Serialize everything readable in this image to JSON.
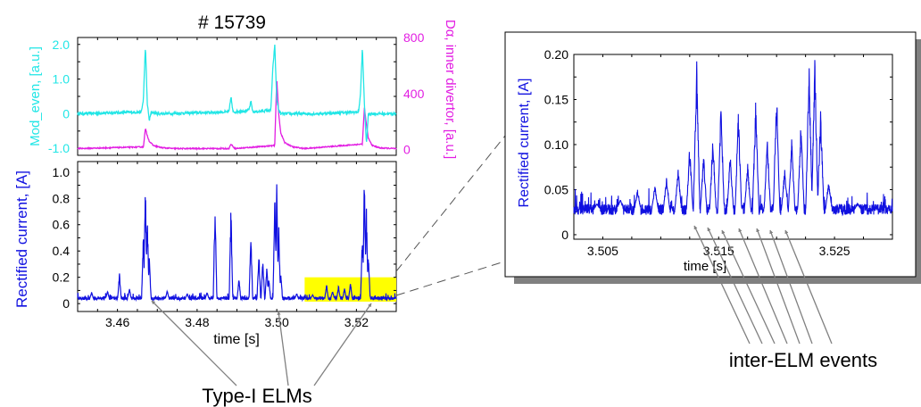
{
  "title": "# 15739",
  "annotations": {
    "type1_elms": "Type-I ELMs",
    "inter_elm": "inter-ELM events"
  },
  "colors": {
    "mod_even": "#22e6e6",
    "dalpha": "#e21ee2",
    "rectified": "#1010e0",
    "highlight": "#ffff00",
    "arrow": "#808080"
  },
  "chart_data": [
    {
      "type": "line",
      "title": "# 15739",
      "xlim": [
        3.45,
        3.53
      ],
      "ylabel_left": "Mod_even, [a.u.]",
      "ylabel_right": "Dα, inner divertor, [a.u.]",
      "ylim_left": [
        -1.2,
        2.2
      ],
      "ylim_right": [
        -40,
        800
      ],
      "left_ticks": [
        "2.0",
        "1.0",
        "0",
        "-1.0"
      ],
      "left_tick_values": [
        2.0,
        1.0,
        0,
        -1.0
      ],
      "right_ticks": [
        "800",
        "400",
        "0"
      ],
      "right_tick_values": [
        800,
        400,
        0
      ],
      "series": [
        {
          "name": "Mod_even",
          "axis": "left",
          "x": [
            3.45,
            3.466,
            3.4665,
            3.467,
            3.4675,
            3.468,
            3.4685,
            3.47,
            3.488,
            3.4885,
            3.489,
            3.493,
            3.4935,
            3.494,
            3.4985,
            3.499,
            3.4995,
            3.5,
            3.5005,
            3.501,
            3.51,
            3.5205,
            3.521,
            3.5215,
            3.522,
            3.5225,
            3.523,
            3.53
          ],
          "y": [
            0,
            0.05,
            0.4,
            1.95,
            0.3,
            -0.2,
            0.05,
            0,
            0.05,
            0.5,
            0.05,
            0.1,
            0.35,
            0.05,
            0.1,
            1.3,
            2.0,
            0.4,
            0.1,
            0,
            0,
            0.05,
            0.5,
            1.9,
            0.3,
            -0.9,
            0,
            0
          ]
        },
        {
          "name": "Dα, inner divertor",
          "axis": "right",
          "x": [
            3.45,
            3.4665,
            3.467,
            3.4675,
            3.468,
            3.469,
            3.471,
            3.474,
            3.488,
            3.4885,
            3.4895,
            3.4995,
            3.5,
            3.5005,
            3.501,
            3.502,
            3.504,
            3.507,
            3.5215,
            3.522,
            3.5225,
            3.523,
            3.524,
            3.526,
            3.53
          ],
          "y": [
            8,
            20,
            150,
            100,
            60,
            30,
            15,
            8,
            8,
            40,
            8,
            30,
            510,
            250,
            120,
            50,
            20,
            8,
            40,
            300,
            180,
            80,
            30,
            12,
            8
          ]
        }
      ]
    },
    {
      "type": "line",
      "xlabel": "time [s]",
      "ylabel": "Rectified current, [A]",
      "xlim": [
        3.45,
        3.53
      ],
      "ylim": [
        -0.06,
        1.08
      ],
      "x_ticks": [
        "3.46",
        "3.48",
        "3.50",
        "3.52"
      ],
      "x_tick_values": [
        3.46,
        3.48,
        3.5,
        3.52
      ],
      "y_ticks": [
        "1.0",
        "0.8",
        "0.6",
        "0.4",
        "0.2",
        "0"
      ],
      "y_tick_values": [
        1.0,
        0.8,
        0.6,
        0.4,
        0.2,
        0
      ],
      "highlight_region": {
        "x": [
          3.507,
          3.53
        ],
        "y": [
          0.015,
          0.2
        ]
      },
      "series": [
        {
          "name": "Rectified current",
          "baseline": 0.04,
          "spikes": [
            [
              3.4535,
              0.09
            ],
            [
              3.4575,
              0.1
            ],
            [
              3.4605,
              0.24
            ],
            [
              3.463,
              0.12
            ],
            [
              3.4665,
              0.55
            ],
            [
              3.467,
              0.98
            ],
            [
              3.4675,
              0.7
            ],
            [
              3.468,
              0.35
            ],
            [
              3.4725,
              0.1
            ],
            [
              3.4775,
              0.08
            ],
            [
              3.4825,
              0.09
            ],
            [
              3.4845,
              0.8
            ],
            [
              3.4885,
              0.77
            ],
            [
              3.4905,
              0.2
            ],
            [
              3.4935,
              0.55
            ],
            [
              3.4955,
              0.42
            ],
            [
              3.4965,
              0.35
            ],
            [
              3.4975,
              0.3
            ],
            [
              3.498,
              0.2
            ],
            [
              3.4995,
              0.9
            ],
            [
              3.5,
              0.98
            ],
            [
              3.5005,
              0.6
            ],
            [
              3.501,
              0.25
            ],
            [
              3.505,
              0.08
            ],
            [
              3.509,
              0.07
            ],
            [
              3.5125,
              0.15
            ],
            [
              3.514,
              0.1
            ],
            [
              3.5155,
              0.14
            ],
            [
              3.517,
              0.12
            ],
            [
              3.5185,
              0.17
            ],
            [
              3.5215,
              0.55
            ],
            [
              3.522,
              0.99
            ],
            [
              3.5225,
              0.75
            ],
            [
              3.523,
              0.4
            ]
          ]
        }
      ]
    },
    {
      "type": "line",
      "xlabel": "time [s]",
      "ylabel": "Rectified current, [A]",
      "xlim": [
        3.5025,
        3.53
      ],
      "ylim": [
        -0.005,
        0.2
      ],
      "x_ticks": [
        "3.505",
        "3.515",
        "3.525"
      ],
      "x_tick_values": [
        3.505,
        3.515,
        3.525
      ],
      "y_ticks": [
        "0.20",
        "0.15",
        "0.10",
        "0.05",
        "0"
      ],
      "y_tick_values": [
        0.2,
        0.15,
        0.1,
        0.05,
        0
      ],
      "series": [
        {
          "name": "Rectified current (zoom)",
          "baseline": 0.028,
          "spikes": [
            [
              3.5045,
              0.035
            ],
            [
              3.5065,
              0.04
            ],
            [
              3.508,
              0.05
            ],
            [
              3.5095,
              0.055
            ],
            [
              3.5105,
              0.065
            ],
            [
              3.5115,
              0.075
            ],
            [
              3.5125,
              0.1
            ],
            [
              3.5131,
              0.2
            ],
            [
              3.5137,
              0.09
            ],
            [
              3.5145,
              0.11
            ],
            [
              3.5152,
              0.145
            ],
            [
              3.516,
              0.09
            ],
            [
              3.5167,
              0.14
            ],
            [
              3.5175,
              0.08
            ],
            [
              3.5182,
              0.15
            ],
            [
              3.5192,
              0.105
            ],
            [
              3.52,
              0.165
            ],
            [
              3.5207,
              0.075
            ],
            [
              3.5213,
              0.11
            ],
            [
              3.5221,
              0.125
            ],
            [
              3.5228,
              0.2
            ],
            [
              3.5233,
              0.2
            ],
            [
              3.5238,
              0.14
            ],
            [
              3.5245,
              0.06
            ],
            [
              3.527,
              0.035
            ]
          ]
        }
      ]
    }
  ]
}
